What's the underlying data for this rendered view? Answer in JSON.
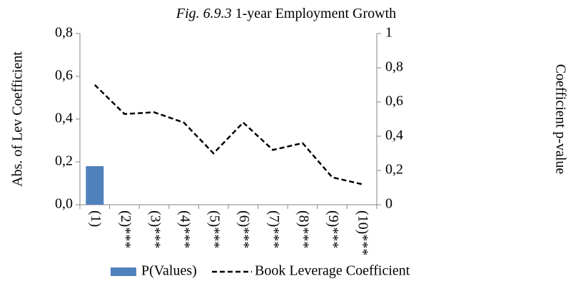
{
  "chart_data": {
    "type": "bar_line",
    "figure_label": "Fig. 6.9.3",
    "title": "1-year Employment Growth",
    "y_label": "Abs. of Lev Coefficient",
    "y2_label": "Coefficient p-value",
    "categories": [
      "(1)",
      "(2)***",
      "(3)***",
      "(4)***",
      "(5)***",
      "(6)***",
      "(7)***",
      "(8)***",
      "(9)***",
      "(10)***"
    ],
    "series": [
      {
        "name": "P(Values)",
        "type": "bar",
        "color": "#4f81bd",
        "axis": "y",
        "values": [
          0.18,
          0,
          0,
          0,
          0,
          0,
          0,
          0,
          0,
          0
        ]
      },
      {
        "name": "Book Leverage Coefficient",
        "type": "line",
        "color": "#000000",
        "axis": "y2",
        "dashed": true,
        "values": [
          0.7,
          0.53,
          0.54,
          0.48,
          0.3,
          0.48,
          0.32,
          0.36,
          0.16,
          0.12
        ]
      }
    ],
    "ylim": [
      0,
      0.8
    ],
    "yticks": [
      {
        "value": 0,
        "label": "0,0"
      },
      {
        "value": 0.2,
        "label": "0,2"
      },
      {
        "value": 0.4,
        "label": "0,4"
      },
      {
        "value": 0.6,
        "label": "0,6"
      },
      {
        "value": 0.8,
        "label": "0,8"
      }
    ],
    "y2lim": [
      0,
      1
    ],
    "y2ticks": [
      0,
      {
        "value": 0.2,
        "label": "0,2"
      },
      {
        "value": 0.4,
        "label": "0,4"
      },
      {
        "value": 0.6,
        "label": "0,6"
      },
      {
        "value": 0.8,
        "label": "0,8"
      },
      1
    ],
    "grid": false,
    "legend": "bottom"
  }
}
